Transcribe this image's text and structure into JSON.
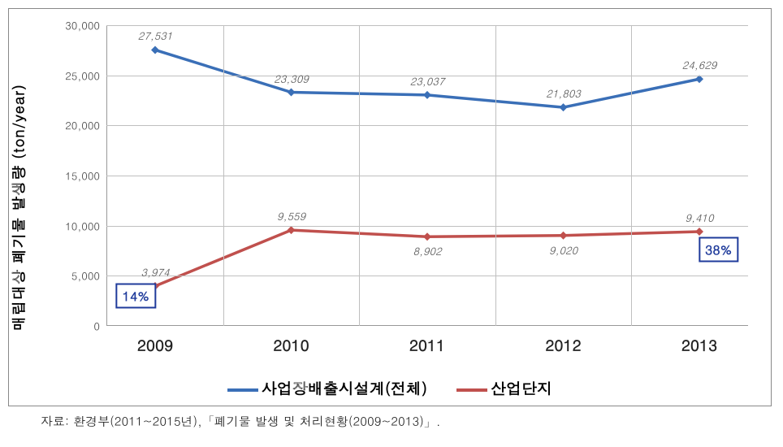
{
  "chart": {
    "type": "line",
    "y_title": "매립대상  폐기물 발생량 (ton/year)",
    "y_title_fontsize": 18,
    "categories": [
      "2009",
      "2010",
      "2011",
      "2012",
      "2013"
    ],
    "x_fontsize": 19,
    "x_fontweight": "bold",
    "ylim": [
      0,
      30000
    ],
    "ytick_step": 5000,
    "yticks": [
      "0",
      "5,000",
      "10,000",
      "15,000",
      "20,000",
      "25,000",
      "30,000"
    ],
    "ytick_fontsize": 13,
    "grid_color": "#bfbfbf",
    "axis_color": "#999999",
    "background_color": "#ffffff",
    "border_color": "#888888",
    "line_width": 3.5,
    "marker_size": 5,
    "marker_style": "diamond",
    "datalabel_fontsize": 13,
    "datalabel_color": "#555555",
    "series": [
      {
        "name": "사업장배출시설계(전체)",
        "color": "#3a6fb7",
        "values": [
          27531,
          23309,
          23037,
          21803,
          24629
        ],
        "labels": [
          "27,531",
          "23,309",
          "23,037",
          "21,803",
          "24,629"
        ],
        "label_pos": [
          "above",
          "above",
          "above",
          "above",
          "above"
        ]
      },
      {
        "name": "산업단지",
        "color": "#c0504d",
        "values": [
          3974,
          9559,
          8902,
          9020,
          9410
        ],
        "labels": [
          "3,974",
          "9,559",
          "8,902",
          "9,020",
          "9,410"
        ],
        "label_pos": [
          "above",
          "above",
          "below",
          "below",
          "above"
        ]
      }
    ],
    "callouts": [
      {
        "text": "14%",
        "x_index": 0,
        "x_offset_pct": -3,
        "y_value": 3000,
        "border_color": "#1f3b9b",
        "text_color": "#1f3b9b",
        "fontsize": 16
      },
      {
        "text": "38%",
        "x_index": 4,
        "x_offset_pct": 3,
        "y_value": 7600,
        "border_color": "#1f3b9b",
        "text_color": "#1f3b9b",
        "fontsize": 16
      }
    ],
    "legend": {
      "position": "bottom",
      "fontsize": 19,
      "fontweight": "bold"
    }
  },
  "source_text": "자료: 환경부(2011~2015년),「폐기물 발생 및 처리현황(2009~2013)」.",
  "source_fontsize": 15
}
